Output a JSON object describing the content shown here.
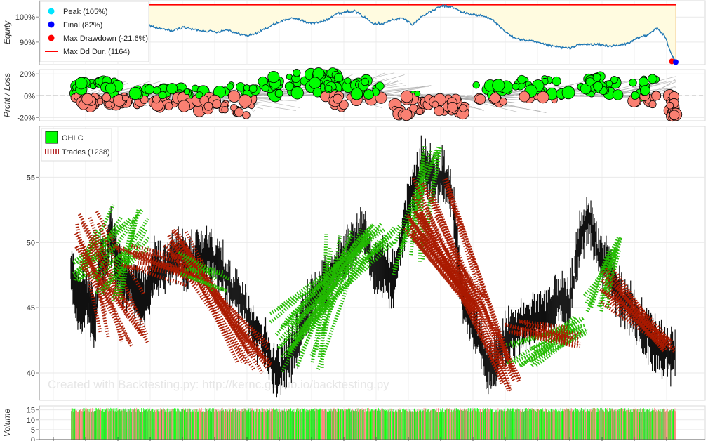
{
  "chart_data": [
    {
      "type": "line",
      "name_key": "equity",
      "ylabel": "Equity",
      "yticks": [
        {
          "v": 90,
          "label": "90%"
        },
        {
          "v": 100,
          "label": "100%"
        }
      ],
      "ylim": [
        81,
        106.5
      ],
      "xlim": [
        0,
        1238
      ],
      "legend": [
        {
          "label": "Peak (105%)",
          "color": "#00e5ff",
          "marker": "circle"
        },
        {
          "label": "Final (82%)",
          "color": "#0000ff",
          "marker": "circle"
        },
        {
          "label": "Max Drawdown (-21.6%)",
          "color": "#ff0000",
          "marker": "circle"
        },
        {
          "label": "Max Dd Dur. (1164)",
          "color": "#ff0000",
          "marker": "line"
        }
      ],
      "peak": {
        "x": 74,
        "y": 105
      },
      "final": {
        "x": 1238,
        "y": 82
      },
      "max_drawdown": {
        "x": 1230,
        "y": 82.3
      },
      "max_dd_duration": {
        "x_start": 74,
        "x_end": 1238,
        "y": 105
      },
      "series": [
        {
          "name": "Equity",
          "color": "#1f77b4",
          "x": [
            0,
            15,
            30,
            45,
            60,
            74,
            80,
            90,
            100,
            115,
            130,
            150,
            170,
            190,
            210,
            230,
            250,
            275,
            300,
            320,
            340,
            360,
            380,
            400,
            420,
            440,
            460,
            480,
            500,
            520,
            540,
            560,
            580,
            600,
            620,
            640,
            660,
            680,
            700,
            720,
            740,
            760,
            780,
            800,
            820,
            840,
            860,
            880,
            900,
            920,
            940,
            960,
            980,
            1000,
            1020,
            1040,
            1060,
            1080,
            1100,
            1120,
            1140,
            1160,
            1180,
            1200,
            1215,
            1230,
            1238
          ],
          "y": [
            100,
            101,
            102.5,
            103.5,
            104.5,
            105,
            101,
            99,
            100,
            99.5,
            99,
            97.5,
            96,
            95,
            94.5,
            96,
            95,
            94.5,
            94,
            95,
            93.5,
            92.5,
            93.5,
            95.5,
            97.5,
            99,
            99.5,
            98,
            97.5,
            98.5,
            101,
            102,
            102.5,
            100,
            97.5,
            97.5,
            99,
            99.5,
            97,
            100.5,
            102.5,
            104.5,
            104,
            102,
            101,
            100.5,
            99.5,
            95.5,
            92.5,
            91,
            90.5,
            89.5,
            88.5,
            88,
            87.5,
            89,
            89,
            89,
            88.5,
            88.5,
            89.5,
            91.5,
            93,
            95.5,
            92.5,
            85,
            82
          ]
        }
      ]
    },
    {
      "type": "scatter",
      "name_key": "pnl",
      "ylabel": "Profit / Loss",
      "yticks": [
        {
          "v": -20,
          "label": "-20%"
        },
        {
          "v": 0,
          "label": "0%"
        },
        {
          "v": 20,
          "label": "20%"
        }
      ],
      "ylim": [
        -23,
        24
      ],
      "xlim": [
        0,
        1238
      ],
      "positive_color": "#00ff00",
      "negative_color": "#fa8072",
      "segment_color": "#a9a9a9",
      "clusters": [
        {
          "x": [
            5,
            20
          ],
          "y": [
            -2,
            9
          ],
          "n": 14
        },
        {
          "x": [
            20,
            60
          ],
          "y": [
            -10,
            14
          ],
          "n": 26
        },
        {
          "x": [
            60,
            120
          ],
          "y": [
            -8,
            14
          ],
          "n": 26
        },
        {
          "x": [
            130,
            200
          ],
          "y": [
            -12,
            7
          ],
          "n": 22
        },
        {
          "x": [
            200,
            260
          ],
          "y": [
            -10,
            8
          ],
          "n": 20
        },
        {
          "x": [
            260,
            320
          ],
          "y": [
            -14,
            4
          ],
          "n": 22
        },
        {
          "x": [
            320,
            380
          ],
          "y": [
            -18,
            10
          ],
          "n": 26
        },
        {
          "x": [
            390,
            460
          ],
          "y": [
            0,
            18
          ],
          "n": 24
        },
        {
          "x": [
            460,
            520
          ],
          "y": [
            2,
            21
          ],
          "n": 22
        },
        {
          "x": [
            520,
            560
          ],
          "y": [
            -12,
            21
          ],
          "n": 34
        },
        {
          "x": [
            565,
            640
          ],
          "y": [
            -4,
            14
          ],
          "n": 22
        },
        {
          "x": [
            660,
            740
          ],
          "y": [
            -18,
            2
          ],
          "n": 24
        },
        {
          "x": [
            740,
            810
          ],
          "y": [
            -16,
            -2
          ],
          "n": 22
        },
        {
          "x": [
            820,
            900
          ],
          "y": [
            -6,
            11
          ],
          "n": 22
        },
        {
          "x": [
            910,
            1020
          ],
          "y": [
            -4,
            16
          ],
          "n": 26
        },
        {
          "x": [
            1040,
            1120
          ],
          "y": [
            0,
            18
          ],
          "n": 24
        },
        {
          "x": [
            1150,
            1200
          ],
          "y": [
            -8,
            16
          ],
          "n": 20
        },
        {
          "x": [
            1225,
            1238
          ],
          "y": [
            -20,
            0
          ],
          "n": 22
        }
      ]
    },
    {
      "type": "line",
      "name_key": "ohlc",
      "ylabel": "",
      "yticks": [
        {
          "v": 40,
          "label": "40"
        },
        {
          "v": 45,
          "label": "45"
        },
        {
          "v": 50,
          "label": "50"
        },
        {
          "v": 55,
          "label": "55"
        }
      ],
      "ylim": [
        37.9,
        58.9
      ],
      "xlim": [
        0,
        1238
      ],
      "legend": [
        {
          "label": "OHLC",
          "color": "#00ff00",
          "marker": "box"
        },
        {
          "label": "Trades (1238)",
          "color": "#b22222",
          "marker": "dash"
        }
      ],
      "watermark": "Created with Backtesting.py: http://kernc.github.io/backtesting.py",
      "price": {
        "x": [
          0,
          10,
          20,
          30,
          40,
          50,
          60,
          70,
          80,
          90,
          100,
          110,
          120,
          130,
          140,
          150,
          160,
          170,
          180,
          200,
          220,
          240,
          260,
          270,
          280,
          300,
          320,
          340,
          360,
          380,
          400,
          420,
          440,
          460,
          480,
          500,
          520,
          540,
          560,
          580,
          600,
          620,
          640,
          660,
          680,
          700,
          720,
          740,
          760,
          780,
          800,
          820,
          840,
          860,
          880,
          900,
          920,
          940,
          960,
          980,
          1000,
          1020,
          1040,
          1060,
          1080,
          1100,
          1120,
          1140,
          1160,
          1180,
          1200,
          1220,
          1238
        ],
        "y": [
          48,
          46,
          45,
          46,
          45,
          44,
          49,
          48,
          51,
          49,
          48,
          47,
          47,
          46,
          46,
          45.5,
          46,
          48,
          48,
          48.5,
          49,
          48.5,
          49,
          48.5,
          49,
          48.5,
          47,
          46,
          45,
          43,
          42,
          40,
          41,
          42,
          44.5,
          46,
          47,
          48,
          49,
          50,
          51,
          48,
          48,
          47,
          51,
          54,
          56,
          55,
          55,
          54,
          46,
          44,
          42,
          40,
          42,
          43,
          43.5,
          44,
          44.5,
          44.5,
          45.5,
          45,
          50,
          52,
          49,
          48,
          46,
          45,
          44,
          43,
          42,
          41.5,
          41.5
        ]
      },
      "trade_color_win": "#22bb00",
      "trade_color_loss": "#aa1a00",
      "trade_groups": [
        {
          "x0": [
            5,
            30
          ],
          "y0": [
            47,
            48.5
          ],
          "x1": [
            40,
            130
          ],
          "y1": [
            49,
            53
          ],
          "n": 14,
          "win": true
        },
        {
          "x0": [
            10,
            60
          ],
          "y0": [
            48,
            52.5
          ],
          "x1": [
            60,
            160
          ],
          "y1": [
            42,
            46
          ],
          "n": 18,
          "win": false
        },
        {
          "x0": [
            40,
            110
          ],
          "y0": [
            45.5,
            49
          ],
          "x1": [
            110,
            160
          ],
          "y1": [
            49.5,
            53.5
          ],
          "n": 12,
          "win": true
        },
        {
          "x0": [
            80,
            150
          ],
          "y0": [
            48,
            50
          ],
          "x1": [
            230,
            280
          ],
          "y1": [
            46,
            49
          ],
          "n": 14,
          "win": false
        },
        {
          "x0": [
            180,
            240
          ],
          "y0": [
            49,
            51
          ],
          "x1": [
            340,
            410
          ],
          "y1": [
            40,
            42.5
          ],
          "n": 18,
          "win": false
        },
        {
          "x0": [
            220,
            260
          ],
          "y0": [
            47,
            49.5
          ],
          "x1": [
            290,
            330
          ],
          "y1": [
            46,
            48
          ],
          "n": 8,
          "win": true
        },
        {
          "x0": [
            400,
            460
          ],
          "y0": [
            41,
            45
          ],
          "x1": [
            600,
            680
          ],
          "y1": [
            50,
            51.5
          ],
          "n": 22,
          "win": true
        },
        {
          "x0": [
            430,
            520
          ],
          "y0": [
            40,
            43.5
          ],
          "x1": [
            520,
            600
          ],
          "y1": [
            48,
            51
          ],
          "n": 12,
          "win": true
        },
        {
          "x0": [
            660,
            720
          ],
          "y0": [
            47.5,
            50
          ],
          "x1": [
            720,
            780
          ],
          "y1": [
            56,
            57.5
          ],
          "n": 10,
          "win": true
        },
        {
          "x0": [
            680,
            720
          ],
          "y0": [
            50,
            52.5
          ],
          "x1": [
            820,
            850
          ],
          "y1": [
            44.5,
            46
          ],
          "n": 22,
          "win": false
        },
        {
          "x0": [
            700,
            780
          ],
          "y0": [
            52,
            55
          ],
          "x1": [
            880,
            920
          ],
          "y1": [
            38.5,
            41
          ],
          "n": 16,
          "win": false
        },
        {
          "x0": [
            890,
            960
          ],
          "y0": [
            40.5,
            42.5
          ],
          "x1": [
            1020,
            1060
          ],
          "y1": [
            43,
            44.5
          ],
          "n": 16,
          "win": true
        },
        {
          "x0": [
            880,
            940
          ],
          "y0": [
            43,
            44
          ],
          "x1": [
            1010,
            1050
          ],
          "y1": [
            42,
            43.5
          ],
          "n": 12,
          "win": false
        },
        {
          "x0": [
            1050,
            1100
          ],
          "y0": [
            44.5,
            46
          ],
          "x1": [
            1100,
            1130
          ],
          "y1": [
            49,
            50.5
          ],
          "n": 10,
          "win": true
        },
        {
          "x0": [
            1080,
            1120
          ],
          "y0": [
            45,
            48
          ],
          "x1": [
            1210,
            1238
          ],
          "y1": [
            41.5,
            42.5
          ],
          "n": 18,
          "win": false
        }
      ]
    },
    {
      "type": "bar",
      "name_key": "volume",
      "ylabel": "Volume",
      "yticks": [
        {
          "v": 0,
          "label": "0"
        },
        {
          "v": 5,
          "label": "5"
        },
        {
          "v": 10,
          "label": "10"
        },
        {
          "v": 15,
          "label": "15"
        }
      ],
      "ylim": [
        0,
        17
      ],
      "xlim": [
        0,
        1238
      ],
      "colors": [
        "#00ff00",
        "#fa8072",
        "#3acd32"
      ],
      "count": 1238,
      "value_range": [
        14,
        16
      ]
    }
  ]
}
